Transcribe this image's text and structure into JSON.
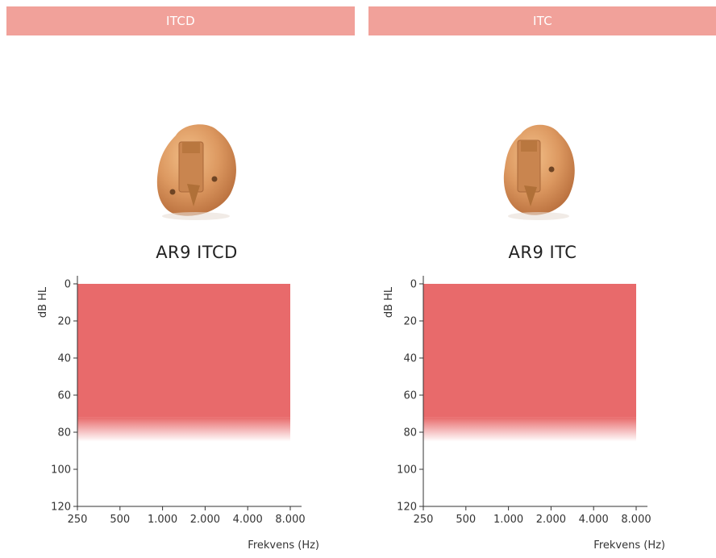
{
  "header": {
    "left_label": "ITCD",
    "right_label": "ITC"
  },
  "products": [
    {
      "model": "AR9 ITCD",
      "image_icon": "hearing-aid-itcd-icon"
    },
    {
      "model": "AR9 ITC",
      "image_icon": "hearing-aid-itc-icon"
    }
  ],
  "colors": {
    "header_bg": "#f1a19a",
    "fitting_range": "#e86a6b",
    "device_shell": "#d9935e"
  },
  "chart_data": [
    {
      "type": "area",
      "title": "",
      "xlabel": "Frekvens (Hz)",
      "ylabel": "dB HL",
      "x_scale": "log",
      "x_ticks": [
        250,
        500,
        1000,
        2000,
        4000,
        8000
      ],
      "x_tick_labels": [
        "250",
        "500",
        "1.000",
        "2.000",
        "4.000",
        "8.000"
      ],
      "y_ticks": [
        0,
        20,
        40,
        60,
        80,
        100,
        120
      ],
      "y_tick_labels": [
        "0",
        "20",
        "40",
        "60",
        "80",
        "100",
        "120"
      ],
      "y_inverted": true,
      "xlim": [
        250,
        8000
      ],
      "ylim": [
        0,
        120
      ],
      "series": [
        {
          "x_range": [
            250,
            8000
          ],
          "y_solid_from": 0,
          "y_solid_to": 72,
          "y_fade_to": 85
        }
      ],
      "grid": false
    },
    {
      "type": "area",
      "title": "",
      "xlabel": "Frekvens (Hz)",
      "ylabel": "dB HL",
      "x_scale": "log",
      "x_ticks": [
        250,
        500,
        1000,
        2000,
        4000,
        8000
      ],
      "x_tick_labels": [
        "250",
        "500",
        "1.000",
        "2.000",
        "4.000",
        "8.000"
      ],
      "y_ticks": [
        0,
        20,
        40,
        60,
        80,
        100,
        120
      ],
      "y_tick_labels": [
        "0",
        "20",
        "40",
        "60",
        "80",
        "100",
        "120"
      ],
      "y_inverted": true,
      "xlim": [
        250,
        8000
      ],
      "ylim": [
        0,
        120
      ],
      "series": [
        {
          "x_range": [
            250,
            8000
          ],
          "y_solid_from": 0,
          "y_solid_to": 72,
          "y_fade_to": 85
        }
      ],
      "grid": false
    }
  ]
}
